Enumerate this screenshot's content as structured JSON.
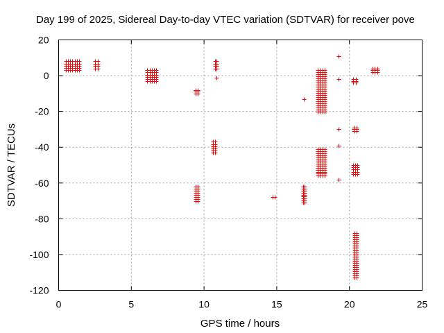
{
  "chart_data": {
    "type": "scatter",
    "title": "Day 199 of 2025, Sidereal Day-to-day VTEC variation (SDTVAR) for receiver pove",
    "xlabel": "GPS time / hours",
    "ylabel": "SDTVAR / TECUs",
    "xlim": [
      0,
      25
    ],
    "ylim": [
      -120,
      20
    ],
    "xticks": [
      0,
      5,
      10,
      15,
      20,
      25
    ],
    "yticks": [
      -120,
      -100,
      -80,
      -60,
      -40,
      -20,
      0,
      20
    ],
    "grid": true,
    "marker": "+",
    "color": "#ff0000",
    "series": [
      {
        "name": "SDTVAR",
        "clusters": [
          {
            "x": [
              0.5,
              1.4
            ],
            "y": [
              3,
              8
            ]
          },
          {
            "x": [
              2.5,
              2.7
            ],
            "y": [
              4,
              8
            ]
          },
          {
            "x": [
              6.1,
              6.7
            ],
            "y": [
              -3,
              3
            ]
          },
          {
            "x": [
              9.4,
              9.55
            ],
            "y": [
              -10,
              -8
            ]
          },
          {
            "x": [
              10.75,
              10.85
            ],
            "y": [
              4,
              8
            ]
          },
          {
            "x": [
              10.6,
              10.75
            ],
            "y": [
              -43,
              -37
            ]
          },
          {
            "x": [
              9.4,
              9.55
            ],
            "y": [
              -70,
              -62
            ]
          },
          {
            "x": [
              16.8,
              16.9
            ],
            "y": [
              -71,
              -62
            ]
          },
          {
            "x": [
              17.8,
              18.3
            ],
            "y": [
              -20,
              3
            ]
          },
          {
            "x": [
              17.8,
              18.3
            ],
            "y": [
              -56,
              -41
            ]
          },
          {
            "x": [
              20.25,
              20.55
            ],
            "y": [
              -55,
              -50
            ]
          },
          {
            "x": [
              20.25,
              20.45
            ],
            "y": [
              -4,
              -2
            ]
          },
          {
            "x": [
              20.3,
              20.5
            ],
            "y": [
              -31,
              -29
            ]
          },
          {
            "x": [
              20.35,
              20.5
            ],
            "y": [
              -113,
              -88
            ]
          },
          {
            "x": [
              21.6,
              21.9
            ],
            "y": [
              2,
              4
            ]
          }
        ],
        "points": [
          {
            "x": 10.85,
            "y": -1
          },
          {
            "x": 14.7,
            "y": -68
          },
          {
            "x": 14.85,
            "y": -68
          },
          {
            "x": 16.85,
            "y": -13
          },
          {
            "x": 19.25,
            "y": 11
          },
          {
            "x": 19.25,
            "y": -2
          },
          {
            "x": 19.25,
            "y": -30
          },
          {
            "x": 19.25,
            "y": -39
          },
          {
            "x": 19.25,
            "y": -58
          }
        ]
      }
    ]
  }
}
